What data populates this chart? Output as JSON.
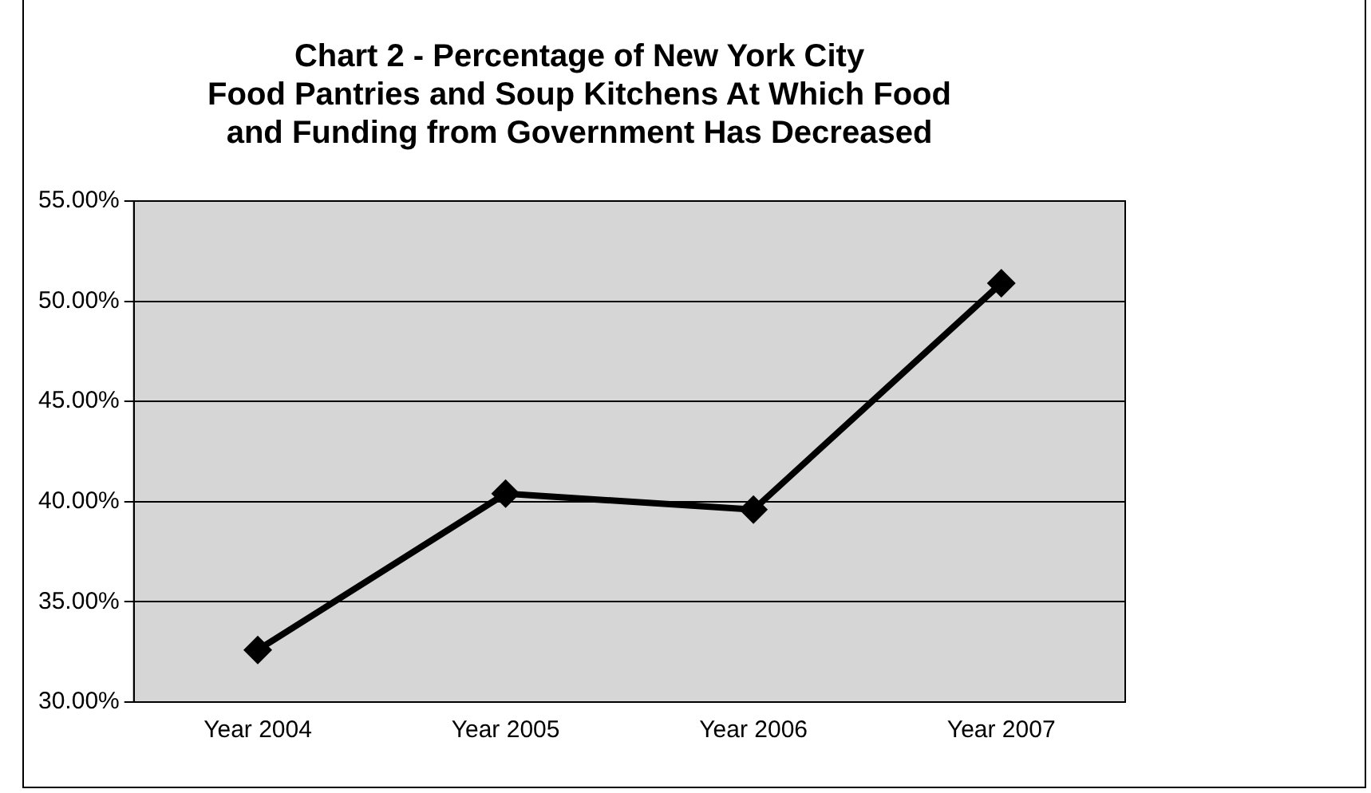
{
  "chart_data": {
    "type": "line",
    "title": "Chart 2 - Percentage of New York City\nFood Pantries and Soup Kitchens At Which Food\nand Funding from Government Has Decreased",
    "categories": [
      "Year 2004",
      "Year 2005",
      "Year 2006",
      "Year 2007"
    ],
    "series": [
      {
        "color": "#000000",
        "values": [
          32.6,
          40.4,
          39.6,
          50.9
        ]
      }
    ],
    "ylim": [
      30,
      55
    ],
    "yticks": [
      {
        "value": 30,
        "label": "30.00%"
      },
      {
        "value": 35,
        "label": "35.00%"
      },
      {
        "value": 40,
        "label": "40.00%"
      },
      {
        "value": 45,
        "label": "45.00%"
      },
      {
        "value": 50,
        "label": "50.00%"
      },
      {
        "value": 55,
        "label": "55.00%"
      }
    ],
    "grid": "y",
    "legend": false,
    "marker": "diamond",
    "line_style": "solid"
  }
}
